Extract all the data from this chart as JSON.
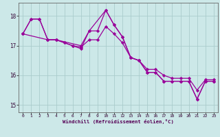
{
  "title": "",
  "xlabel": "Windchill (Refroidissement éolien,°C)",
  "ylabel": "",
  "background_color": "#cce8e8",
  "grid_color": "#aacccc",
  "line_color": "#990099",
  "spine_color": "#666666",
  "xlim": [
    -0.5,
    23.5
  ],
  "ylim": [
    14.75,
    18.45
  ],
  "yticks": [
    15,
    16,
    17,
    18
  ],
  "xticks": [
    0,
    1,
    2,
    3,
    4,
    5,
    6,
    7,
    8,
    9,
    10,
    11,
    12,
    13,
    14,
    15,
    16,
    17,
    18,
    19,
    20,
    21,
    22,
    23
  ],
  "series": [
    {
      "x": [
        0,
        1,
        2,
        3,
        4,
        5,
        6,
        7,
        8,
        9,
        10,
        11,
        12,
        13,
        14,
        15,
        16,
        17,
        18,
        19,
        20,
        21,
        22,
        23
      ],
      "y": [
        17.4,
        17.9,
        17.9,
        17.2,
        17.2,
        17.1,
        17.0,
        16.9,
        17.5,
        17.5,
        18.2,
        17.7,
        17.3,
        16.6,
        16.5,
        16.1,
        16.1,
        15.8,
        15.8,
        15.8,
        15.8,
        15.2,
        15.8,
        15.8
      ]
    },
    {
      "x": [
        0,
        1,
        2,
        3,
        4,
        5,
        6,
        7,
        8,
        9,
        10,
        11,
        12,
        13,
        14,
        15,
        16,
        17,
        18,
        19,
        20,
        21,
        22,
        23
      ],
      "y": [
        17.4,
        17.9,
        17.9,
        17.2,
        17.2,
        17.1,
        17.0,
        16.95,
        17.2,
        17.2,
        17.65,
        17.4,
        17.1,
        16.6,
        16.5,
        16.2,
        16.2,
        16.0,
        15.9,
        15.9,
        15.9,
        15.5,
        15.85,
        15.85
      ]
    },
    {
      "x": [
        0,
        3,
        4,
        7,
        8,
        10,
        11,
        12,
        13,
        14,
        15,
        16,
        17,
        18,
        19,
        20,
        21,
        22,
        23
      ],
      "y": [
        17.4,
        17.2,
        17.2,
        17.0,
        17.5,
        18.2,
        17.7,
        17.3,
        16.6,
        16.5,
        16.1,
        16.1,
        15.8,
        15.8,
        15.8,
        15.8,
        15.2,
        15.8,
        15.8
      ]
    }
  ]
}
